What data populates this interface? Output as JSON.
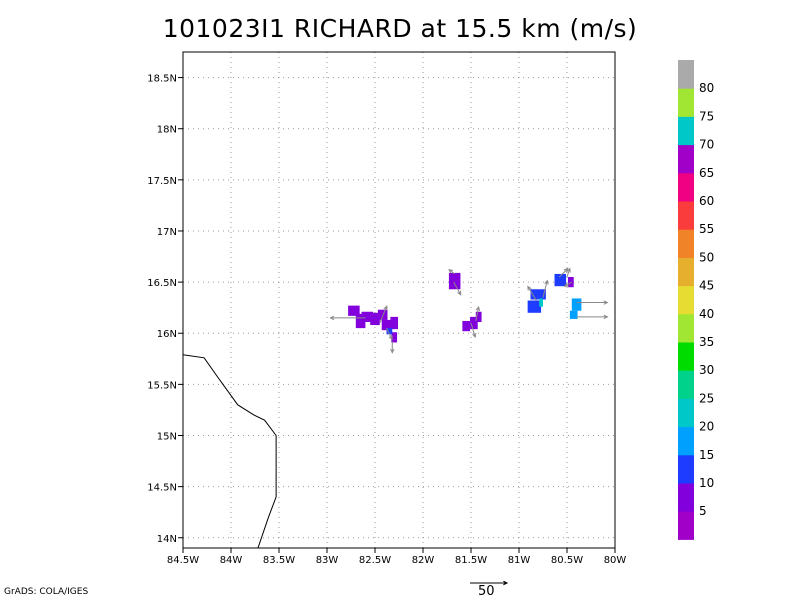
{
  "title": "101023I1 RICHARD at 15.5 km (m/s)",
  "footer": "GrADS: COLA/IGES",
  "chart_data": {
    "type": "heatmap",
    "title": "101023I1 RICHARD at 15.5 km (m/s)",
    "xlabel": "",
    "ylabel": "",
    "xlim": [
      -84.5,
      -80.0
    ],
    "ylim": [
      13.9,
      18.75
    ],
    "grid": true,
    "x_ticks": [
      {
        "v": -84.5,
        "label": "84.5W"
      },
      {
        "v": -84.0,
        "label": "84W"
      },
      {
        "v": -83.5,
        "label": "83.5W"
      },
      {
        "v": -83.0,
        "label": "83W"
      },
      {
        "v": -82.5,
        "label": "82.5W"
      },
      {
        "v": -82.0,
        "label": "82W"
      },
      {
        "v": -81.5,
        "label": "81.5W"
      },
      {
        "v": -81.0,
        "label": "81W"
      },
      {
        "v": -80.5,
        "label": "80.5W"
      },
      {
        "v": -80.0,
        "label": "80W"
      }
    ],
    "y_ticks": [
      {
        "v": 14.0,
        "label": "14N"
      },
      {
        "v": 14.5,
        "label": "14.5N"
      },
      {
        "v": 15.0,
        "label": "15N"
      },
      {
        "v": 15.5,
        "label": "15.5N"
      },
      {
        "v": 16.0,
        "label": "16N"
      },
      {
        "v": 16.5,
        "label": "16.5N"
      },
      {
        "v": 17.0,
        "label": "17N"
      },
      {
        "v": 17.5,
        "label": "17.5N"
      },
      {
        "v": 18.0,
        "label": "18N"
      },
      {
        "v": 18.5,
        "label": "18.5N"
      }
    ],
    "colorbar": {
      "labels": [
        "5",
        "10",
        "15",
        "20",
        "25",
        "30",
        "35",
        "40",
        "45",
        "50",
        "55",
        "60",
        "65",
        "70",
        "75",
        "80"
      ],
      "colors": [
        "#a000c8",
        "#8200dc",
        "#1e3cff",
        "#00a0ff",
        "#00c8c8",
        "#00d28c",
        "#00dc00",
        "#a0e632",
        "#e6dc32",
        "#e6af2d",
        "#f08228",
        "#fa3c3c",
        "#f00082",
        "#a000c8",
        "#00c8c8",
        "#a0e632",
        "#aaaaaa"
      ]
    },
    "coastline": [
      [
        -84.5,
        15.79
      ],
      [
        -84.28,
        15.76
      ],
      [
        -84.13,
        15.56
      ],
      [
        -83.93,
        15.3
      ],
      [
        -83.76,
        15.2
      ],
      [
        -83.65,
        15.15
      ],
      [
        -83.53,
        15.0
      ],
      [
        -83.53,
        14.4
      ],
      [
        -83.61,
        14.2
      ],
      [
        -83.73,
        13.87
      ]
    ],
    "cells": [
      {
        "lon": -82.72,
        "lat": 16.22,
        "w": 0.12,
        "h": 0.1,
        "speed": 6
      },
      {
        "lon": -82.65,
        "lat": 16.12,
        "w": 0.1,
        "h": 0.14,
        "speed": 7
      },
      {
        "lon": -82.58,
        "lat": 16.16,
        "w": 0.12,
        "h": 0.1,
        "speed": 5
      },
      {
        "lon": -82.5,
        "lat": 16.14,
        "w": 0.1,
        "h": 0.12,
        "speed": 6
      },
      {
        "lon": -82.42,
        "lat": 16.18,
        "w": 0.1,
        "h": 0.1,
        "speed": 7
      },
      {
        "lon": -82.38,
        "lat": 16.08,
        "w": 0.1,
        "h": 0.1,
        "speed": 8
      },
      {
        "lon": -82.3,
        "lat": 16.1,
        "w": 0.08,
        "h": 0.12,
        "speed": 6
      },
      {
        "lon": -82.3,
        "lat": 15.96,
        "w": 0.06,
        "h": 0.1,
        "speed": 7
      },
      {
        "lon": -82.35,
        "lat": 16.02,
        "w": 0.06,
        "h": 0.06,
        "speed": 12
      },
      {
        "lon": -81.67,
        "lat": 16.51,
        "w": 0.12,
        "h": 0.16,
        "speed": 7
      },
      {
        "lon": -81.55,
        "lat": 16.07,
        "w": 0.08,
        "h": 0.1,
        "speed": 8
      },
      {
        "lon": -81.47,
        "lat": 16.1,
        "w": 0.08,
        "h": 0.12,
        "speed": 6
      },
      {
        "lon": -81.42,
        "lat": 16.16,
        "w": 0.06,
        "h": 0.1,
        "speed": 8
      },
      {
        "lon": -80.84,
        "lat": 16.26,
        "w": 0.14,
        "h": 0.12,
        "speed": 14
      },
      {
        "lon": -80.8,
        "lat": 16.38,
        "w": 0.16,
        "h": 0.1,
        "speed": 13
      },
      {
        "lon": -80.77,
        "lat": 16.3,
        "w": 0.04,
        "h": 0.08,
        "speed": 22
      },
      {
        "lon": -80.57,
        "lat": 16.52,
        "w": 0.12,
        "h": 0.12,
        "speed": 13
      },
      {
        "lon": -80.46,
        "lat": 16.5,
        "w": 0.06,
        "h": 0.1,
        "speed": 6
      },
      {
        "lon": -80.4,
        "lat": 16.28,
        "w": 0.1,
        "h": 0.12,
        "speed": 18
      },
      {
        "lon": -80.43,
        "lat": 16.18,
        "w": 0.08,
        "h": 0.08,
        "speed": 18
      }
    ],
    "vectors": [
      {
        "lon": -82.6,
        "lat": 16.15,
        "u": -2.5,
        "v": 0
      },
      {
        "lon": -82.45,
        "lat": 16.1,
        "u": 0.5,
        "v": 1.2
      },
      {
        "lon": -82.38,
        "lat": 16.05,
        "u": 0.4,
        "v": -0.8
      },
      {
        "lon": -82.32,
        "lat": 15.92,
        "u": 0,
        "v": -0.8
      },
      {
        "lon": -81.68,
        "lat": 16.5,
        "u": 0.5,
        "v": -0.9
      },
      {
        "lon": -81.67,
        "lat": 16.58,
        "u": -0.4,
        "v": 0.3
      },
      {
        "lon": -81.5,
        "lat": 16.1,
        "u": 0.3,
        "v": -1.0
      },
      {
        "lon": -81.45,
        "lat": 16.12,
        "u": 0.2,
        "v": 1.0
      },
      {
        "lon": -80.82,
        "lat": 16.32,
        "u": -0.6,
        "v": 1.0
      },
      {
        "lon": -80.75,
        "lat": 16.35,
        "u": 0.3,
        "v": 1.2
      },
      {
        "lon": -80.58,
        "lat": 16.55,
        "u": 0.6,
        "v": 0.6
      },
      {
        "lon": -80.5,
        "lat": 16.55,
        "u": 0.2,
        "v": 0.6
      },
      {
        "lon": -80.45,
        "lat": 16.5,
        "u": -0.5,
        "v": -0.3
      },
      {
        "lon": -80.4,
        "lat": 16.3,
        "u": 2.2,
        "v": 0
      },
      {
        "lon": -80.4,
        "lat": 16.16,
        "u": 2.2,
        "v": 0
      }
    ],
    "reference_vector": {
      "magnitude": 50,
      "label": "50"
    }
  }
}
